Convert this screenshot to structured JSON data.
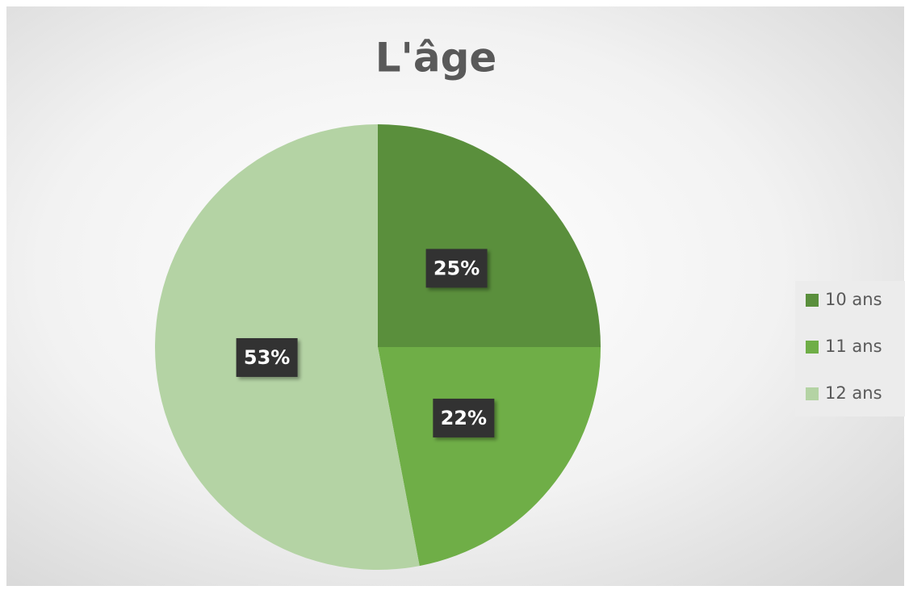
{
  "chart_data": {
    "type": "pie",
    "title": "L'âge",
    "categories": [
      "10 ans",
      "11 ans",
      "12 ans"
    ],
    "values": [
      25,
      22,
      53
    ],
    "value_labels": [
      "25%",
      "22%",
      "53%"
    ],
    "colors": [
      "#5a8f3c",
      "#6fae47",
      "#b4d3a4"
    ],
    "legend": "right"
  }
}
